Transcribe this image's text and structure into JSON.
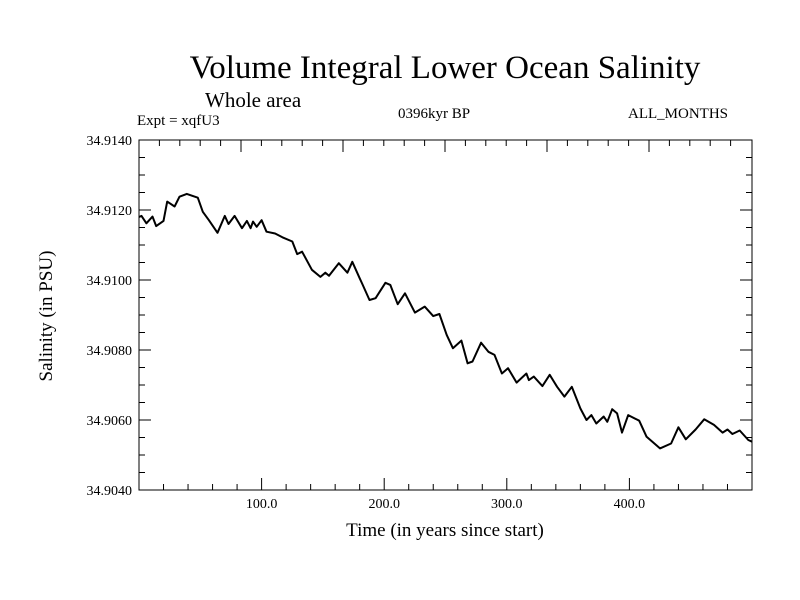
{
  "title": "Volume Integral Lower Ocean Salinity",
  "subtitle": "Whole area",
  "experiment": "Expt = xqfU3",
  "period": "0396kyr BP",
  "months": "ALL_MONTHS",
  "chart_data": {
    "type": "line",
    "title": "Volume Integral Lower Ocean Salinity",
    "xlabel": "Time (in years since start)",
    "ylabel": "Salinity (in PSU)",
    "xlim": [
      0,
      500
    ],
    "ylim": [
      34.904,
      34.914
    ],
    "xticks": [
      100,
      200,
      300,
      400
    ],
    "xtick_labels": [
      "100.0",
      "200.0",
      "300.0",
      "400.0"
    ],
    "yticks": [
      34.904,
      34.906,
      34.908,
      34.91,
      34.912,
      34.914
    ],
    "ytick_labels": [
      "34.9040",
      "34.9060",
      "34.9080",
      "34.9100",
      "34.9120",
      "34.9140"
    ],
    "grid": false,
    "series": [
      {
        "name": "Salinity",
        "color": "#000000",
        "x": [
          0,
          2,
          6,
          11,
          14,
          20,
          23,
          29,
          33,
          39,
          48,
          52,
          57,
          64,
          70,
          73,
          78,
          84,
          88,
          91,
          93,
          96,
          100,
          104,
          111,
          117,
          125,
          129,
          133,
          141,
          148,
          152,
          155,
          163,
          170,
          174,
          180,
          182,
          188,
          193,
          201,
          205,
          211,
          217,
          225,
          233,
          240,
          245,
          251,
          256,
          263,
          268,
          272,
          279,
          285,
          290,
          296,
          301,
          308,
          316,
          318,
          322,
          329,
          335,
          341,
          347,
          353,
          360,
          365,
          369,
          373,
          379,
          382,
          386,
          390,
          394,
          399,
          408,
          414,
          425,
          434,
          440,
          446,
          454,
          461,
          469,
          476,
          480,
          484,
          490,
          497,
          500
        ],
        "y": [
          34.9118,
          34.91183,
          34.91162,
          34.91181,
          34.91154,
          34.91169,
          34.91224,
          34.9121,
          34.91238,
          34.91246,
          34.91235,
          34.91195,
          34.91171,
          34.91135,
          34.91183,
          34.9116,
          34.91183,
          34.91148,
          34.91169,
          34.91148,
          34.91167,
          34.91152,
          34.91171,
          34.91138,
          34.91133,
          34.91122,
          34.9111,
          34.91074,
          34.91081,
          34.91029,
          34.91009,
          34.91021,
          34.91012,
          34.91048,
          34.91021,
          34.91052,
          34.91005,
          34.9099,
          34.90943,
          34.90948,
          34.90992,
          34.90986,
          34.90931,
          34.90962,
          34.90907,
          34.90924,
          34.90897,
          34.90903,
          34.90843,
          34.90805,
          34.90827,
          34.90762,
          34.90767,
          34.90821,
          34.90795,
          34.90786,
          34.90733,
          34.90748,
          34.90707,
          34.90733,
          34.90714,
          34.90724,
          34.90697,
          34.90729,
          34.90695,
          34.90667,
          34.90695,
          34.90633,
          34.906,
          34.90614,
          34.9059,
          34.9061,
          34.90595,
          34.90631,
          34.90619,
          34.90564,
          34.90614,
          34.90598,
          34.90552,
          34.90519,
          34.90533,
          34.90579,
          34.90545,
          34.90573,
          34.90602,
          34.90586,
          34.90564,
          34.90573,
          34.9056,
          34.9057,
          34.90543,
          34.90538
        ]
      }
    ]
  }
}
